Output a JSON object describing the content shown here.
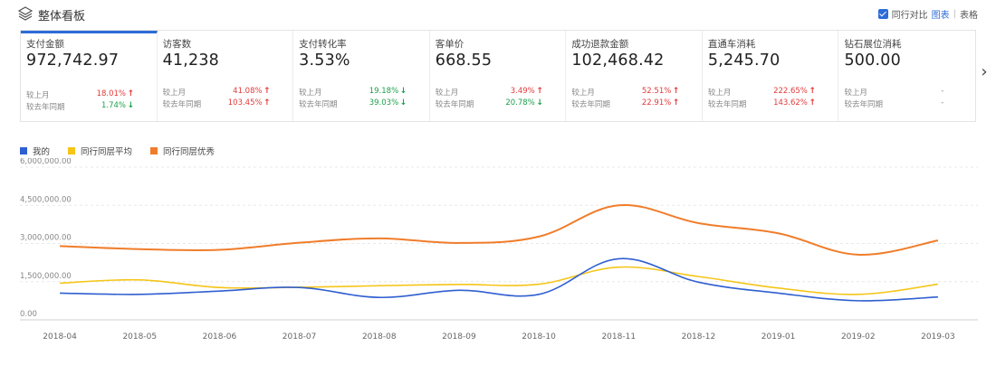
{
  "header": {
    "title": "整体看板",
    "compare_label": "同行对比",
    "chart_link": "图表",
    "separator": "|",
    "table_link": "表格"
  },
  "cards": [
    {
      "name": "支付金额",
      "value": "972,742.97",
      "mom_label": "较上月",
      "mom": "18.01%",
      "mom_dir": "up",
      "yoy_label": "较去年同期",
      "yoy": "1.74%",
      "yoy_dir": "down",
      "active": true
    },
    {
      "name": "访客数",
      "value": "41,238",
      "mom_label": "较上月",
      "mom": "41.08%",
      "mom_dir": "up",
      "yoy_label": "较去年同期",
      "yoy": "103.45%",
      "yoy_dir": "up"
    },
    {
      "name": "支付转化率",
      "value": "3.53%",
      "mom_label": "较上月",
      "mom": "19.18%",
      "mom_dir": "down",
      "yoy_label": "较去年同期",
      "yoy": "39.03%",
      "yoy_dir": "down"
    },
    {
      "name": "客单价",
      "value": "668.55",
      "mom_label": "较上月",
      "mom": "3.49%",
      "mom_dir": "up",
      "yoy_label": "较去年同期",
      "yoy": "20.78%",
      "yoy_dir": "down"
    },
    {
      "name": "成功退款金额",
      "value": "102,468.42",
      "mom_label": "较上月",
      "mom": "52.51%",
      "mom_dir": "up",
      "yoy_label": "较去年同期",
      "yoy": "22.91%",
      "yoy_dir": "up"
    },
    {
      "name": "直通车消耗",
      "value": "5,245.70",
      "mom_label": "较上月",
      "mom": "222.65%",
      "mom_dir": "up",
      "yoy_label": "较去年同期",
      "yoy": "143.62%",
      "yoy_dir": "up"
    },
    {
      "name": "钻石展位消耗",
      "value": "500.00",
      "mom_label": "较上月",
      "mom": "-",
      "mom_dir": "none",
      "yoy_label": "较去年同期",
      "yoy": "-",
      "yoy_dir": "none"
    }
  ],
  "icons": {
    "header": "layers-icon",
    "next": "chevron-right-icon",
    "arrow_up": "↑",
    "arrow_down": "↓"
  },
  "colors": {
    "accent": "#2d6cd9",
    "up": "#e33a3a",
    "down": "#1ba04a"
  },
  "chart_data": {
    "type": "line",
    "categories": [
      "2018-04",
      "2018-05",
      "2018-06",
      "2018-07",
      "2018-08",
      "2018-09",
      "2018-10",
      "2018-11",
      "2018-12",
      "2019-01",
      "2019-02",
      "2019-03"
    ],
    "series": [
      {
        "name": "我的",
        "color": "#2f5fd0",
        "values": [
          1050000,
          1000000,
          1130000,
          1270000,
          880000,
          1160000,
          1000000,
          2400000,
          1480000,
          1050000,
          750000,
          900000
        ]
      },
      {
        "name": "同行同层平均",
        "color": "#f5c518",
        "values": [
          1440000,
          1570000,
          1270000,
          1280000,
          1340000,
          1390000,
          1400000,
          2070000,
          1700000,
          1250000,
          1000000,
          1400000
        ]
      },
      {
        "name": "同行同层优秀",
        "color": "#f07d2b",
        "values": [
          2900000,
          2780000,
          2750000,
          3030000,
          3200000,
          3020000,
          3270000,
          4500000,
          3800000,
          3400000,
          2560000,
          3120000
        ]
      }
    ],
    "yticks": [
      "6,000,000.00",
      "4,500,000.00",
      "3,000,000.00",
      "1,500,000.00",
      "0.00"
    ],
    "ylim": [
      0,
      6000000
    ],
    "grid": true,
    "legend": "top-left"
  }
}
